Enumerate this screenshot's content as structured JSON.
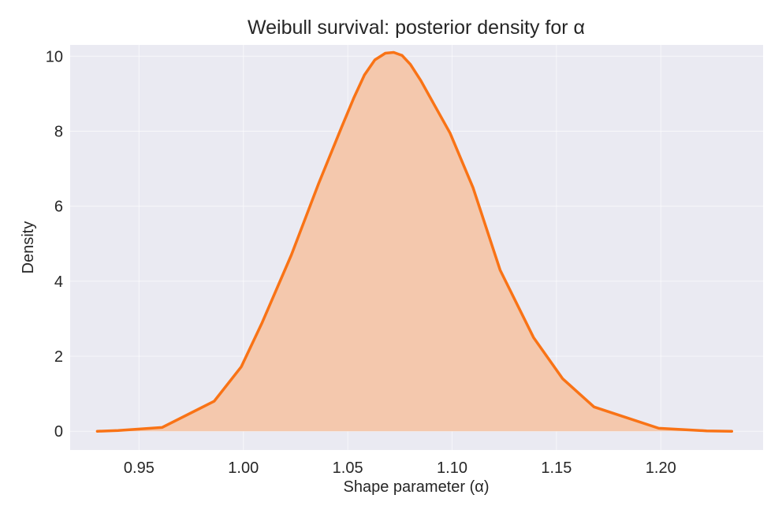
{
  "chart_data": {
    "type": "area",
    "title": "Weibull survival: posterior density for α",
    "xlabel": "Shape parameter (α)",
    "ylabel": "Density",
    "xlim": [
      0.917,
      1.249
    ],
    "ylim": [
      -0.5,
      10.3
    ],
    "xticks": [
      0.95,
      1.0,
      1.05,
      1.1,
      1.15,
      1.2
    ],
    "xtick_labels": [
      "0.95",
      "1.00",
      "1.05",
      "1.10",
      "1.15",
      "1.20"
    ],
    "yticks": [
      0,
      2,
      4,
      6,
      8,
      10
    ],
    "ytick_labels": [
      "0",
      "2",
      "4",
      "6",
      "8",
      "10"
    ],
    "grid": true,
    "background": "#eaeaf2",
    "series": [
      {
        "color": "#f97316",
        "fill_color": "#f4c8ad",
        "x": [
          0.93,
          0.94,
          0.961,
          0.986,
          0.999,
          1.009,
          1.023,
          1.036,
          1.047,
          1.053,
          1.058,
          1.063,
          1.068,
          1.072,
          1.076,
          1.08,
          1.085,
          1.091,
          1.099,
          1.11,
          1.123,
          1.139,
          1.153,
          1.168,
          1.199,
          1.222,
          1.234
        ],
        "y": [
          0.0,
          0.02,
          0.1,
          0.8,
          1.72,
          2.9,
          4.7,
          6.6,
          8.1,
          8.9,
          9.5,
          9.9,
          10.08,
          10.1,
          10.02,
          9.78,
          9.35,
          8.75,
          7.95,
          6.5,
          4.3,
          2.5,
          1.4,
          0.65,
          0.08,
          0.01,
          0.0
        ]
      }
    ]
  }
}
